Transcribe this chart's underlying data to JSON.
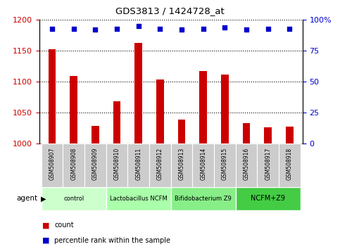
{
  "title": "GDS3813 / 1424728_at",
  "samples": [
    "GSM508907",
    "GSM508908",
    "GSM508909",
    "GSM508910",
    "GSM508911",
    "GSM508912",
    "GSM508913",
    "GSM508914",
    "GSM508915",
    "GSM508916",
    "GSM508917",
    "GSM508918"
  ],
  "bar_values": [
    1152,
    1109,
    1028,
    1068,
    1163,
    1103,
    1038,
    1117,
    1111,
    1033,
    1026,
    1027
  ],
  "percentile_values": [
    93,
    93,
    92,
    93,
    95,
    93,
    92,
    93,
    94,
    92,
    93,
    93
  ],
  "bar_color": "#cc0000",
  "dot_color": "#0000cc",
  "ylim_left": [
    1000,
    1200
  ],
  "ylim_right": [
    0,
    100
  ],
  "yticks_left": [
    1000,
    1050,
    1100,
    1150,
    1200
  ],
  "yticks_right": [
    0,
    25,
    50,
    75,
    100
  ],
  "ytick_labels_right": [
    "0",
    "25",
    "50",
    "75",
    "100%"
  ],
  "groups": [
    {
      "label": "control",
      "start": 0,
      "end": 3,
      "color": "#ccffcc"
    },
    {
      "label": "Lactobacillus NCFM",
      "start": 3,
      "end": 6,
      "color": "#aaffaa"
    },
    {
      "label": "Bifidobacterium Z9",
      "start": 6,
      "end": 9,
      "color": "#88ee88"
    },
    {
      "label": "NCFM+Z9",
      "start": 9,
      "end": 12,
      "color": "#44cc44"
    }
  ],
  "agent_label": "agent",
  "legend_bar_label": "count",
  "legend_dot_label": "percentile rank within the sample",
  "bg_color": "#ffffff",
  "grid_color": "#000000",
  "tick_area_color": "#cccccc",
  "tick_area_border_color": "#999999"
}
